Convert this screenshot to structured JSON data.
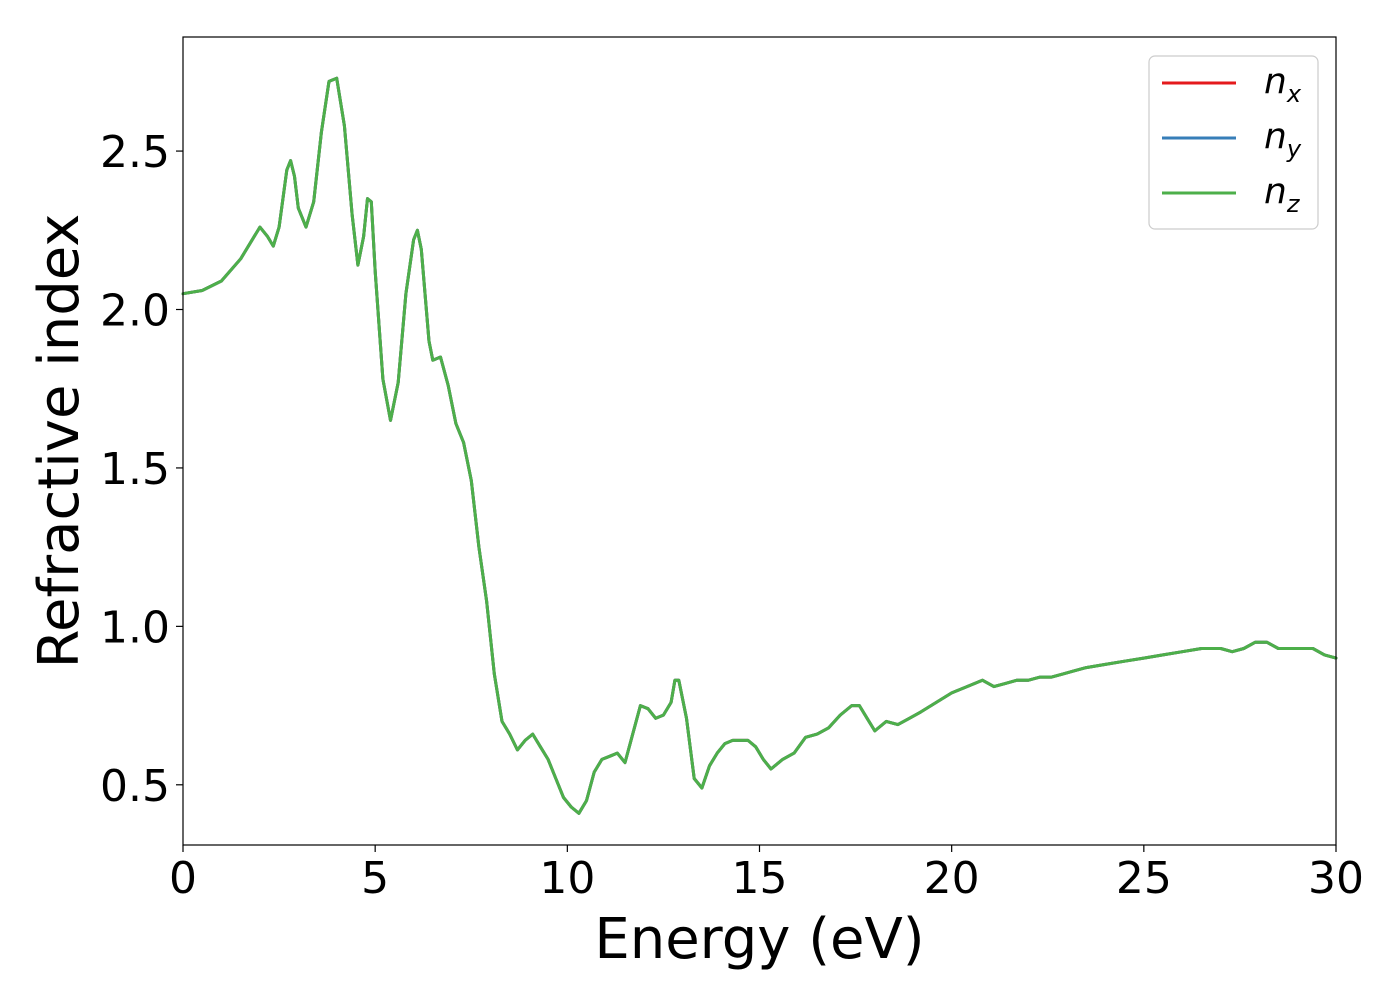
{
  "chart_data": {
    "type": "line",
    "xlabel": "Energy (eV)",
    "ylabel": "Refractive index",
    "xlim": [
      0,
      30
    ],
    "ylim": [
      0.31,
      2.86
    ],
    "xticks": [
      0,
      5,
      10,
      15,
      20,
      25,
      30
    ],
    "xtick_labels": [
      "0",
      "5",
      "10",
      "15",
      "20",
      "25",
      "30"
    ],
    "yticks": [
      0.5,
      1.0,
      1.5,
      2.0,
      2.5
    ],
    "ytick_labels": [
      "0.5",
      "1.0",
      "1.5",
      "2.0",
      "2.5"
    ],
    "grid": false,
    "legend_position": "top-right",
    "x": [
      0,
      0.5,
      1.0,
      1.5,
      1.8,
      2.0,
      2.2,
      2.35,
      2.5,
      2.7,
      2.8,
      2.9,
      3.0,
      3.2,
      3.4,
      3.6,
      3.8,
      4.0,
      4.2,
      4.4,
      4.55,
      4.7,
      4.8,
      4.9,
      5.0,
      5.2,
      5.4,
      5.6,
      5.8,
      6.0,
      6.1,
      6.2,
      6.4,
      6.5,
      6.7,
      6.9,
      7.1,
      7.3,
      7.5,
      7.7,
      7.9,
      8.1,
      8.3,
      8.5,
      8.7,
      8.9,
      9.1,
      9.3,
      9.5,
      9.7,
      9.9,
      10.1,
      10.3,
      10.5,
      10.7,
      10.9,
      11.1,
      11.3,
      11.5,
      11.7,
      11.9,
      12.1,
      12.3,
      12.5,
      12.7,
      12.8,
      12.9,
      13.1,
      13.3,
      13.5,
      13.7,
      13.9,
      14.1,
      14.3,
      14.5,
      14.7,
      14.9,
      15.1,
      15.3,
      15.6,
      15.9,
      16.2,
      16.5,
      16.8,
      17.1,
      17.4,
      17.6,
      17.8,
      18.0,
      18.3,
      18.6,
      18.9,
      19.2,
      19.6,
      20.0,
      20.4,
      20.8,
      21.1,
      21.4,
      21.7,
      22.0,
      22.3,
      22.6,
      22.9,
      23.2,
      23.5,
      24.0,
      24.5,
      25.0,
      25.5,
      26.0,
      26.5,
      27.0,
      27.3,
      27.6,
      27.9,
      28.2,
      28.5,
      28.8,
      29.1,
      29.4,
      29.7,
      30.0
    ],
    "series": [
      {
        "name": "n_x",
        "color": "#e41a1c",
        "values": [
          2.05,
          2.06,
          2.09,
          2.16,
          2.22,
          2.26,
          2.23,
          2.2,
          2.26,
          2.44,
          2.47,
          2.42,
          2.32,
          2.26,
          2.34,
          2.56,
          2.72,
          2.73,
          2.58,
          2.3,
          2.14,
          2.23,
          2.35,
          2.34,
          2.12,
          1.78,
          1.65,
          1.77,
          2.05,
          2.22,
          2.25,
          2.19,
          1.9,
          1.84,
          1.85,
          1.76,
          1.64,
          1.58,
          1.46,
          1.25,
          1.08,
          0.85,
          0.7,
          0.66,
          0.61,
          0.64,
          0.66,
          0.62,
          0.58,
          0.52,
          0.46,
          0.43,
          0.41,
          0.45,
          0.54,
          0.58,
          0.59,
          0.6,
          0.57,
          0.66,
          0.75,
          0.74,
          0.71,
          0.72,
          0.76,
          0.83,
          0.83,
          0.71,
          0.52,
          0.49,
          0.56,
          0.6,
          0.63,
          0.64,
          0.64,
          0.64,
          0.62,
          0.58,
          0.55,
          0.58,
          0.6,
          0.65,
          0.66,
          0.68,
          0.72,
          0.75,
          0.75,
          0.71,
          0.67,
          0.7,
          0.69,
          0.71,
          0.73,
          0.76,
          0.79,
          0.81,
          0.83,
          0.81,
          0.82,
          0.83,
          0.83,
          0.84,
          0.84,
          0.85,
          0.86,
          0.87,
          0.88,
          0.89,
          0.9,
          0.91,
          0.92,
          0.93,
          0.93,
          0.92,
          0.93,
          0.95,
          0.95,
          0.93,
          0.93,
          0.93,
          0.93,
          0.91,
          0.9
        ]
      },
      {
        "name": "n_y",
        "color": "#377eb8",
        "values": [
          2.05,
          2.06,
          2.09,
          2.16,
          2.22,
          2.26,
          2.23,
          2.2,
          2.26,
          2.44,
          2.47,
          2.42,
          2.32,
          2.26,
          2.34,
          2.56,
          2.72,
          2.73,
          2.58,
          2.3,
          2.14,
          2.23,
          2.35,
          2.34,
          2.12,
          1.78,
          1.65,
          1.77,
          2.05,
          2.22,
          2.25,
          2.19,
          1.9,
          1.84,
          1.85,
          1.76,
          1.64,
          1.58,
          1.46,
          1.25,
          1.08,
          0.85,
          0.7,
          0.66,
          0.61,
          0.64,
          0.66,
          0.62,
          0.58,
          0.52,
          0.46,
          0.43,
          0.41,
          0.45,
          0.54,
          0.58,
          0.59,
          0.6,
          0.57,
          0.66,
          0.75,
          0.74,
          0.71,
          0.72,
          0.76,
          0.83,
          0.83,
          0.71,
          0.52,
          0.49,
          0.56,
          0.6,
          0.63,
          0.64,
          0.64,
          0.64,
          0.62,
          0.58,
          0.55,
          0.58,
          0.6,
          0.65,
          0.66,
          0.68,
          0.72,
          0.75,
          0.75,
          0.71,
          0.67,
          0.7,
          0.69,
          0.71,
          0.73,
          0.76,
          0.79,
          0.81,
          0.83,
          0.81,
          0.82,
          0.83,
          0.83,
          0.84,
          0.84,
          0.85,
          0.86,
          0.87,
          0.88,
          0.89,
          0.9,
          0.91,
          0.92,
          0.93,
          0.93,
          0.92,
          0.93,
          0.95,
          0.95,
          0.93,
          0.93,
          0.93,
          0.93,
          0.91,
          0.9
        ]
      },
      {
        "name": "n_z",
        "color": "#4daf4a",
        "values": [
          2.05,
          2.06,
          2.09,
          2.16,
          2.22,
          2.26,
          2.23,
          2.2,
          2.26,
          2.44,
          2.47,
          2.42,
          2.32,
          2.26,
          2.34,
          2.56,
          2.72,
          2.73,
          2.58,
          2.3,
          2.14,
          2.23,
          2.35,
          2.34,
          2.12,
          1.78,
          1.65,
          1.77,
          2.05,
          2.22,
          2.25,
          2.19,
          1.9,
          1.84,
          1.85,
          1.76,
          1.64,
          1.58,
          1.46,
          1.25,
          1.08,
          0.85,
          0.7,
          0.66,
          0.61,
          0.64,
          0.66,
          0.62,
          0.58,
          0.52,
          0.46,
          0.43,
          0.41,
          0.45,
          0.54,
          0.58,
          0.59,
          0.6,
          0.57,
          0.66,
          0.75,
          0.74,
          0.71,
          0.72,
          0.76,
          0.83,
          0.83,
          0.71,
          0.52,
          0.49,
          0.56,
          0.6,
          0.63,
          0.64,
          0.64,
          0.64,
          0.62,
          0.58,
          0.55,
          0.58,
          0.6,
          0.65,
          0.66,
          0.68,
          0.72,
          0.75,
          0.75,
          0.71,
          0.67,
          0.7,
          0.69,
          0.71,
          0.73,
          0.76,
          0.79,
          0.81,
          0.83,
          0.81,
          0.82,
          0.83,
          0.83,
          0.84,
          0.84,
          0.85,
          0.86,
          0.87,
          0.88,
          0.89,
          0.9,
          0.91,
          0.92,
          0.93,
          0.93,
          0.92,
          0.93,
          0.95,
          0.95,
          0.93,
          0.93,
          0.93,
          0.93,
          0.91,
          0.9
        ]
      }
    ],
    "legend": [
      {
        "base": "n",
        "sub": "x",
        "color": "#e41a1c"
      },
      {
        "base": "n",
        "sub": "y",
        "color": "#377eb8"
      },
      {
        "base": "n",
        "sub": "z",
        "color": "#4daf4a"
      }
    ]
  }
}
